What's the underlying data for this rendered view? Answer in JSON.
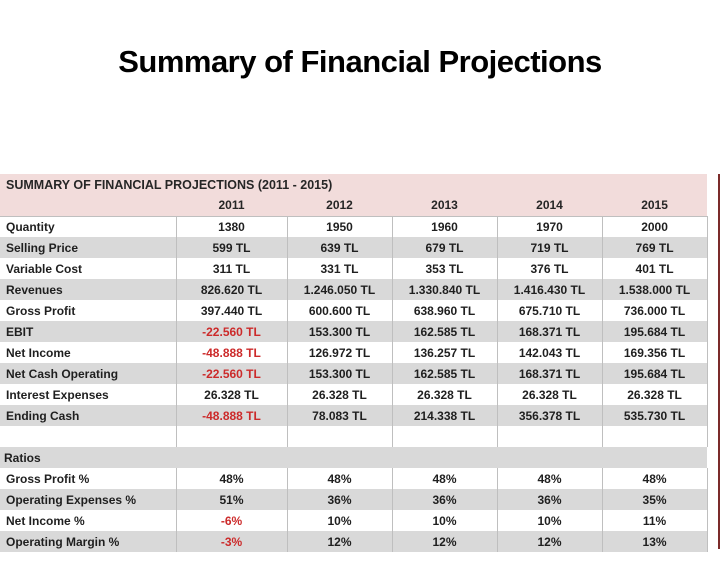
{
  "slide": {
    "title": "Summary of Financial Projections"
  },
  "table": {
    "header": "SUMMARY OF FINANCIAL PROJECTIONS  (2011 - 2015)",
    "years": [
      "2011",
      "2012",
      "2013",
      "2014",
      "2015"
    ],
    "rows": [
      {
        "label": "Quantity",
        "values": [
          "1380",
          "1950",
          "1960",
          "1970",
          "2000"
        ]
      },
      {
        "label": "Selling Price",
        "values": [
          "599 TL",
          "639 TL",
          "679 TL",
          "719 TL",
          "769 TL"
        ]
      },
      {
        "label": "Variable Cost",
        "values": [
          "311 TL",
          "331 TL",
          "353 TL",
          "376 TL",
          "401 TL"
        ]
      },
      {
        "label": "Revenues",
        "values": [
          "826.620 TL",
          "1.246.050 TL",
          "1.330.840 TL",
          "1.416.430 TL",
          "1.538.000 TL"
        ]
      },
      {
        "label": "Gross Profit",
        "values": [
          "397.440 TL",
          "600.600 TL",
          "638.960 TL",
          "675.710 TL",
          "736.000 TL"
        ]
      },
      {
        "label": "EBIT",
        "values": [
          "-22.560 TL",
          "153.300 TL",
          "162.585 TL",
          "168.371 TL",
          "195.684 TL"
        ]
      },
      {
        "label": "Net Income",
        "values": [
          "-48.888 TL",
          "126.972 TL",
          "136.257 TL",
          "142.043 TL",
          "169.356 TL"
        ]
      },
      {
        "label": "Net Cash Operating",
        "values": [
          "-22.560 TL",
          "153.300 TL",
          "162.585 TL",
          "168.371 TL",
          "195.684 TL"
        ]
      },
      {
        "label": "Interest Expenses",
        "values": [
          "26.328 TL",
          "26.328 TL",
          "26.328 TL",
          "26.328 TL",
          "26.328 TL"
        ]
      },
      {
        "label": "Ending Cash",
        "values": [
          "-48.888 TL",
          "78.083 TL",
          "214.338 TL",
          "356.378 TL",
          "535.730 TL"
        ]
      }
    ],
    "ratios_label": "Ratios",
    "ratio_rows": [
      {
        "label": "Gross Profit %",
        "values": [
          "48%",
          "48%",
          "48%",
          "48%",
          "48%"
        ]
      },
      {
        "label": "Operating Expenses %",
        "values": [
          "51%",
          "36%",
          "36%",
          "36%",
          "35%"
        ]
      },
      {
        "label": "Net Income %",
        "values": [
          "-6%",
          "10%",
          "10%",
          "10%",
          "11%"
        ]
      },
      {
        "label": "Operating Margin %",
        "values": [
          "-3%",
          "12%",
          "12%",
          "12%",
          "13%"
        ]
      }
    ]
  },
  "colors": {
    "header_pink": "#f2dcdb",
    "row_gray": "#d9d9d9",
    "negative_red": "#cc2a2a",
    "right_border_maroon": "#7b2b2a"
  }
}
